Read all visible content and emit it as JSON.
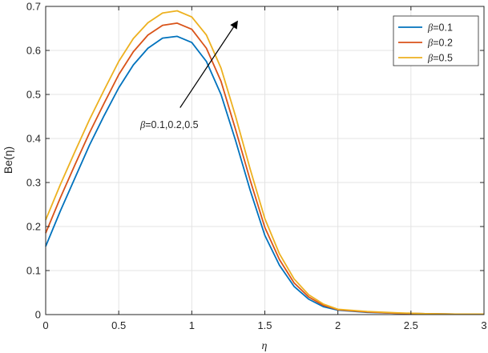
{
  "chart_data": {
    "type": "line",
    "title": "",
    "xlabel": "η",
    "ylabel": "Be(η)",
    "xlim": [
      0,
      3
    ],
    "ylim": [
      0,
      0.7
    ],
    "xticks": [
      "0",
      "0.5",
      "1",
      "1.5",
      "2",
      "2.5",
      "3"
    ],
    "yticks": [
      "0",
      "0.1",
      "0.2",
      "0.3",
      "0.4",
      "0.5",
      "0.6",
      "0.7"
    ],
    "grid": true,
    "legend_position": "top-right",
    "series": [
      {
        "name": "β=0.1",
        "color": "#0072BD",
        "x": [
          0,
          0.1,
          0.2,
          0.3,
          0.4,
          0.5,
          0.6,
          0.7,
          0.8,
          0.9,
          1.0,
          1.1,
          1.2,
          1.3,
          1.4,
          1.5,
          1.6,
          1.7,
          1.8,
          1.9,
          2.0,
          2.2,
          2.4,
          2.6,
          2.8,
          3.0
        ],
        "y": [
          0.155,
          0.235,
          0.31,
          0.385,
          0.452,
          0.515,
          0.567,
          0.605,
          0.628,
          0.632,
          0.618,
          0.575,
          0.5,
          0.395,
          0.282,
          0.18,
          0.112,
          0.064,
          0.035,
          0.018,
          0.01,
          0.005,
          0.003,
          0.002,
          0.001,
          0.001
        ]
      },
      {
        "name": "β=0.2",
        "color": "#D95319",
        "x": [
          0,
          0.1,
          0.2,
          0.3,
          0.4,
          0.5,
          0.6,
          0.7,
          0.8,
          0.9,
          1.0,
          1.1,
          1.2,
          1.3,
          1.4,
          1.5,
          1.6,
          1.7,
          1.8,
          1.9,
          2.0,
          2.2,
          2.4,
          2.6,
          2.8,
          3.0
        ],
        "y": [
          0.185,
          0.265,
          0.34,
          0.413,
          0.48,
          0.545,
          0.597,
          0.635,
          0.657,
          0.662,
          0.648,
          0.605,
          0.53,
          0.42,
          0.305,
          0.198,
          0.125,
          0.072,
          0.04,
          0.021,
          0.011,
          0.006,
          0.003,
          0.002,
          0.001,
          0.001
        ]
      },
      {
        "name": "β=0.5",
        "color": "#EDB120",
        "x": [
          0,
          0.1,
          0.2,
          0.3,
          0.4,
          0.5,
          0.6,
          0.7,
          0.8,
          0.9,
          1.0,
          1.1,
          1.2,
          1.3,
          1.4,
          1.5,
          1.6,
          1.7,
          1.8,
          1.9,
          2.0,
          2.2,
          2.4,
          2.6,
          2.8,
          3.0
        ],
        "y": [
          0.215,
          0.295,
          0.37,
          0.443,
          0.51,
          0.575,
          0.627,
          0.663,
          0.685,
          0.69,
          0.676,
          0.635,
          0.56,
          0.45,
          0.33,
          0.218,
          0.138,
          0.081,
          0.045,
          0.024,
          0.012,
          0.007,
          0.004,
          0.002,
          0.001,
          0.001
        ]
      }
    ],
    "annotation": {
      "text_symbol": "β",
      "text_rest": "=0.1,0.2,0.5",
      "arrow_from": [
        0.92,
        0.47
      ],
      "arrow_to": [
        1.31,
        0.665
      ]
    }
  }
}
